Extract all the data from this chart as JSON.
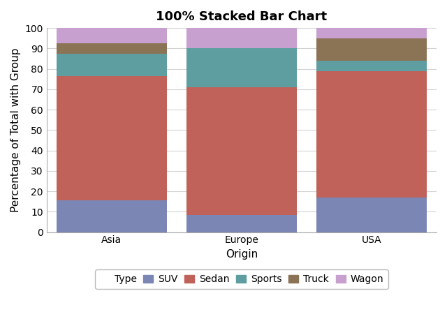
{
  "title": "100% Stacked Bar Chart",
  "xlabel": "Origin",
  "ylabel": "Percentage of Total with Group",
  "categories": [
    "Asia",
    "Europe",
    "USA"
  ],
  "series": {
    "SUV": [
      15.5,
      8.5,
      17.0
    ],
    "Sedan": [
      61.0,
      62.5,
      62.0
    ],
    "Sports": [
      11.0,
      19.0,
      5.0
    ],
    "Truck": [
      5.0,
      0.0,
      11.0
    ],
    "Wagon": [
      7.5,
      10.0,
      5.0
    ]
  },
  "colors": {
    "SUV": "#7b86b5",
    "Sedan": "#c0615a",
    "Sports": "#5f9ea0",
    "Truck": "#8b7355",
    "Wagon": "#c8a0d0"
  },
  "legend_title": "Type",
  "ylim": [
    0,
    100
  ],
  "yticks": [
    0,
    10,
    20,
    30,
    40,
    50,
    60,
    70,
    80,
    90,
    100
  ],
  "background_color": "#ffffff",
  "panel_background": "#ffffff",
  "grid_color": "#d3d3d3",
  "bar_width": 0.85,
  "title_fontsize": 13,
  "axis_label_fontsize": 11,
  "tick_fontsize": 10,
  "legend_fontsize": 10
}
